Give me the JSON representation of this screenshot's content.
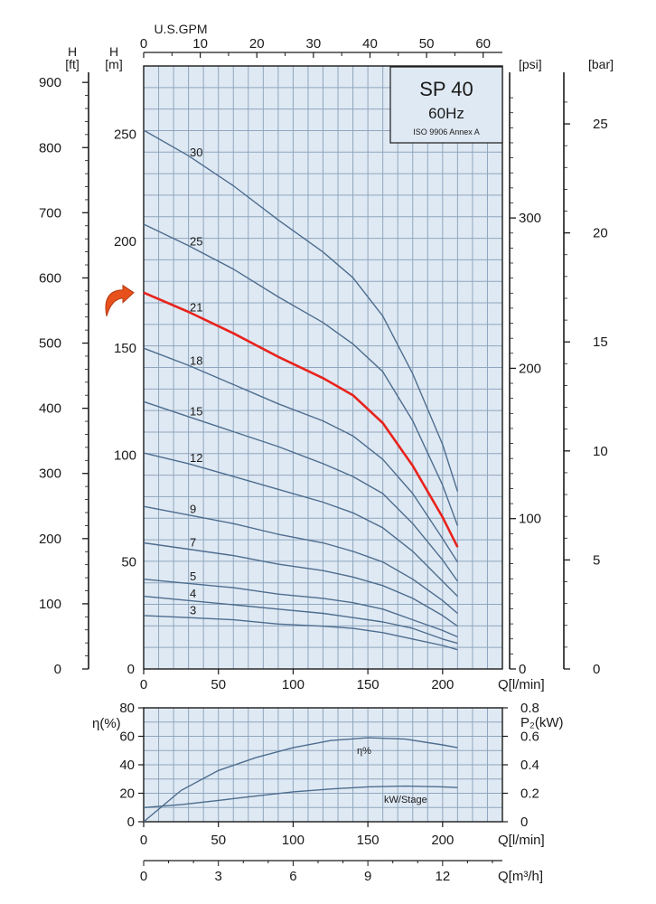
{
  "colors": {
    "plot_background": "#dfe9f3",
    "grid_line": "#8fa6be",
    "curve": "#4d6d8e",
    "highlight_curve": "#e8231c",
    "marker_arrow": "#e8511c",
    "axis": "#1a1a1a"
  },
  "title_box": {
    "model": "SP 40",
    "frequency": "60Hz",
    "standard": "ISO 9906 Annex A"
  },
  "chart_data": [
    {
      "type": "line",
      "name": "pump-head-curves",
      "x_axis": {
        "label": "Q[l/min]",
        "range": [
          0,
          240
        ],
        "ticks": [
          "0",
          "50",
          "100",
          "150",
          "200"
        ],
        "tick_values": [
          0,
          50,
          100,
          150,
          200
        ]
      },
      "x_top_axis": {
        "label": "U.S.GPM",
        "ticks": [
          "0",
          "10",
          "20",
          "30",
          "40",
          "50",
          "60"
        ],
        "tick_values": [
          0,
          10,
          20,
          30,
          40,
          50,
          60
        ]
      },
      "y_axis": {
        "label_top": "H",
        "label_unit": "[m]",
        "range": [
          0,
          282
        ],
        "ticks": [
          "0",
          "50",
          "100",
          "150",
          "200",
          "250"
        ],
        "tick_values": [
          0,
          50,
          100,
          150,
          200,
          250
        ]
      },
      "y_axis_ft": {
        "label_top": "H",
        "label_unit": "[ft]",
        "ticks": [
          "0",
          "100",
          "200",
          "300",
          "400",
          "500",
          "600",
          "700",
          "800",
          "900"
        ],
        "tick_values": [
          0,
          100,
          200,
          300,
          400,
          500,
          600,
          700,
          800,
          900
        ]
      },
      "y_axis_psi": {
        "label": "[psi]",
        "ticks": [
          "0",
          "100",
          "200",
          "300"
        ],
        "tick_values": [
          0,
          100,
          200,
          300
        ]
      },
      "y_axis_bar": {
        "label": "[bar]",
        "ticks": [
          "0",
          "5",
          "10",
          "15",
          "20",
          "25"
        ],
        "tick_values": [
          0,
          5,
          10,
          15,
          20,
          25
        ]
      },
      "grid": true,
      "highlight_series": "21",
      "series": [
        {
          "name": "30",
          "x": [
            0,
            30,
            60,
            90,
            120,
            140,
            160,
            180,
            200,
            210
          ],
          "y": [
            252,
            240,
            226,
            210,
            195,
            183,
            165,
            138,
            105,
            83
          ]
        },
        {
          "name": "25",
          "x": [
            0,
            30,
            60,
            90,
            120,
            140,
            160,
            180,
            200,
            210
          ],
          "y": [
            208,
            198,
            187,
            174,
            162,
            152,
            139,
            116,
            86,
            67
          ]
        },
        {
          "name": "21",
          "x": [
            0,
            30,
            60,
            90,
            120,
            140,
            160,
            180,
            200,
            210
          ],
          "y": [
            176,
            167,
            157,
            146,
            136,
            128,
            115,
            95,
            71,
            57
          ]
        },
        {
          "name": "18",
          "x": [
            0,
            30,
            60,
            90,
            120,
            140,
            160,
            180,
            200,
            210
          ],
          "y": [
            150,
            142,
            133,
            124,
            116,
            109,
            98,
            82,
            61,
            50
          ]
        },
        {
          "name": "15",
          "x": [
            0,
            30,
            60,
            90,
            120,
            140,
            160,
            180,
            200,
            210
          ],
          "y": [
            125,
            118,
            111,
            104,
            96,
            90,
            82,
            68,
            51,
            41
          ]
        },
        {
          "name": "12",
          "x": [
            0,
            30,
            60,
            90,
            120,
            140,
            160,
            180,
            200,
            210
          ],
          "y": [
            101,
            96,
            90,
            84,
            78,
            73,
            66,
            55,
            41,
            34
          ]
        },
        {
          "name": "9",
          "x": [
            0,
            30,
            60,
            90,
            120,
            140,
            160,
            180,
            200,
            210
          ],
          "y": [
            76,
            72,
            68,
            63,
            59,
            55,
            50,
            42,
            32,
            26
          ]
        },
        {
          "name": "7",
          "x": [
            0,
            30,
            60,
            90,
            120,
            140,
            160,
            180,
            200,
            210
          ],
          "y": [
            59,
            56,
            53,
            49,
            46,
            43,
            39,
            33,
            25,
            20
          ]
        },
        {
          "name": "5",
          "x": [
            0,
            30,
            60,
            90,
            120,
            140,
            160,
            180,
            200,
            210
          ],
          "y": [
            42,
            40,
            38,
            35,
            33,
            31,
            28,
            23,
            18,
            15
          ]
        },
        {
          "name": "4",
          "x": [
            0,
            30,
            60,
            90,
            120,
            140,
            160,
            180,
            200,
            210
          ],
          "y": [
            34,
            32,
            30,
            28,
            26,
            24,
            22,
            19,
            14,
            12
          ]
        },
        {
          "name": "3",
          "x": [
            0,
            30,
            60,
            90,
            120,
            140,
            160,
            180,
            200,
            210
          ],
          "y": [
            25,
            24,
            23,
            21,
            20,
            19,
            17,
            14,
            11,
            9
          ]
        }
      ]
    },
    {
      "type": "line",
      "name": "efficiency-and-power",
      "x_axis": {
        "label": "Q[l/min]",
        "range": [
          0,
          240
        ],
        "ticks": [
          "0",
          "50",
          "100",
          "150",
          "200"
        ],
        "tick_values": [
          0,
          50,
          100,
          150,
          200
        ]
      },
      "x_axis_m3h": {
        "label": "Q[m³/h]",
        "ticks": [
          "0",
          "3",
          "6",
          "9",
          "12"
        ],
        "tick_values": [
          0,
          3,
          6,
          9,
          12
        ]
      },
      "y_axis": {
        "label": "η(%)",
        "range": [
          0,
          80
        ],
        "ticks": [
          "0",
          "20",
          "40",
          "60",
          "80"
        ],
        "tick_values": [
          0,
          20,
          40,
          60,
          80
        ]
      },
      "y_axis_right": {
        "label": "P₂(kW)",
        "range": [
          0,
          0.8
        ],
        "ticks": [
          "0",
          "0.2",
          "0.4",
          "0.6",
          "0.8"
        ],
        "tick_values": [
          0,
          0.2,
          0.4,
          0.6,
          0.8
        ]
      },
      "grid": true,
      "series": [
        {
          "name": "η%",
          "axis": "left",
          "x": [
            0,
            25,
            50,
            75,
            100,
            125,
            150,
            175,
            200,
            210
          ],
          "y": [
            0,
            22,
            36,
            45,
            52,
            57,
            59,
            58,
            54,
            52
          ]
        },
        {
          "name": "kW/Stage",
          "axis": "right",
          "x": [
            0,
            25,
            50,
            75,
            100,
            125,
            150,
            175,
            200,
            210
          ],
          "y": [
            0.1,
            0.12,
            0.15,
            0.18,
            0.21,
            0.23,
            0.245,
            0.25,
            0.245,
            0.24
          ]
        }
      ]
    }
  ]
}
